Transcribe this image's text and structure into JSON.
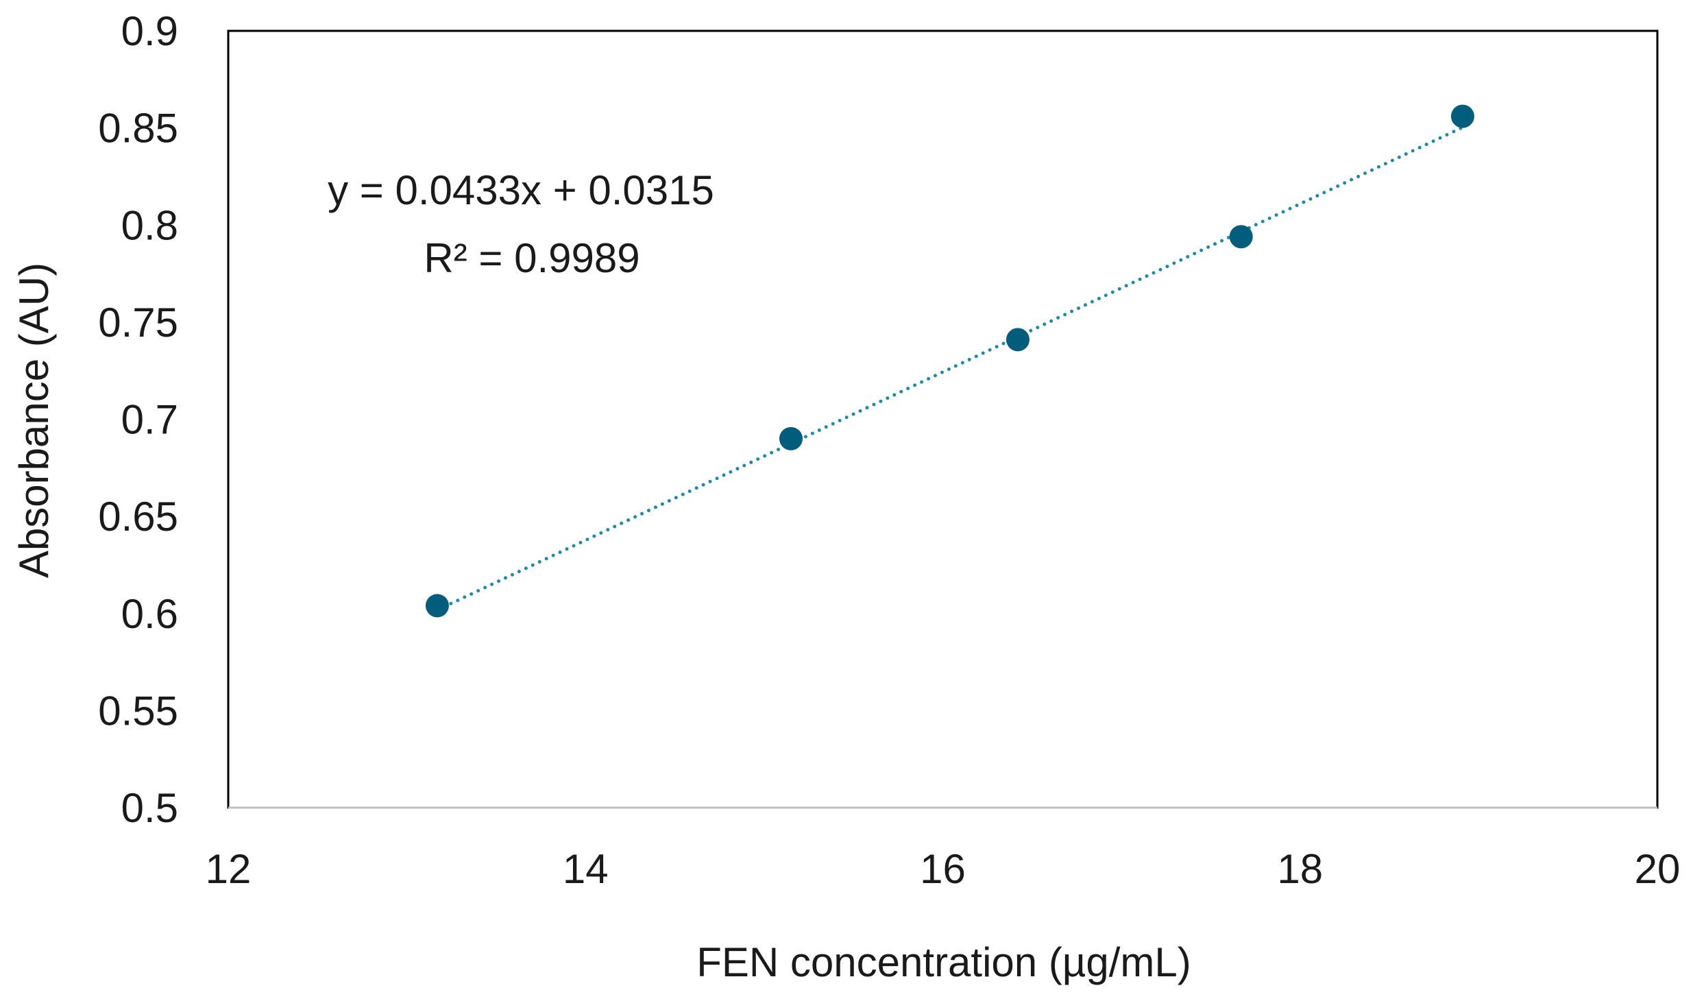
{
  "chart_data": {
    "type": "scatter",
    "title": "",
    "xlabel": "FEN concentration (µg/mL)",
    "ylabel": "Absorbance (AU)",
    "xlim": [
      12,
      20
    ],
    "ylim": [
      0.5,
      0.9
    ],
    "x_ticks": [
      12,
      14,
      16,
      18,
      20
    ],
    "y_ticks": [
      0.5,
      0.55,
      0.6,
      0.65,
      0.7,
      0.75,
      0.8,
      0.85,
      0.9
    ],
    "x_tick_labels": [
      "12",
      "14",
      "16",
      "18",
      "20"
    ],
    "y_tick_labels": [
      "0.5",
      "0.55",
      "0.6",
      "0.65",
      "0.7",
      "0.75",
      "0.8",
      "0.85",
      "0.9"
    ],
    "grid": false,
    "legend": "none",
    "series": [
      {
        "x": [
          13.17,
          15.15,
          16.42,
          17.67,
          18.91
        ],
        "y": [
          0.604,
          0.69,
          0.741,
          0.794,
          0.856
        ]
      }
    ],
    "trendline": {
      "type": "linear",
      "style": "dotted",
      "slope": 0.0433,
      "intercept": 0.0315,
      "x_range": [
        13.17,
        18.91
      ]
    },
    "annotations": {
      "equation": "y = 0.0433x + 0.0315",
      "r_squared": "R² = 0.9989"
    },
    "colors": {
      "marker": "#005e7c",
      "trendline": "#1e88a8",
      "plot_border": "#000000",
      "axis_line": "#bfbfbf"
    }
  }
}
